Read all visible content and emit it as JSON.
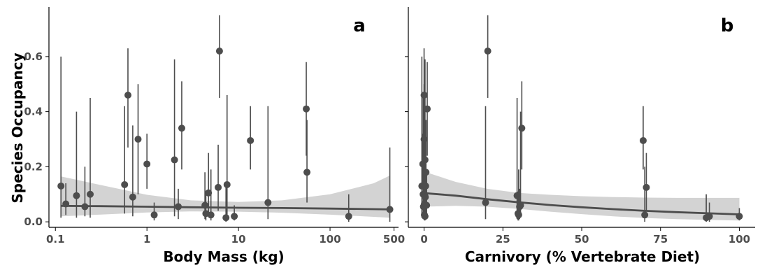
{
  "figure": {
    "ylabel": "Species Occupancy",
    "colors": {
      "points": "#4d4d4d",
      "ribbon": "#d3d3d3",
      "axis": "#000000",
      "ticktext": "#4d4d4d"
    }
  },
  "chart_data": [
    {
      "type": "scatter",
      "panel_label": "a",
      "xlabel": "Body Mass (kg)",
      "ylabel": "Species Occupancy",
      "x_scale": "log10",
      "xlim": [
        0.085,
        560
      ],
      "ylim": [
        -0.02,
        0.78
      ],
      "x_ticks": [
        0.1,
        1,
        10,
        100,
        500
      ],
      "x_tick_labels": [
        "0.1",
        "1",
        "10",
        "100",
        "500"
      ],
      "y_ticks": [
        0.0,
        0.2,
        0.4,
        0.6
      ],
      "y_tick_labels": [
        "0.0",
        "0.2",
        "0.4",
        "0.6"
      ],
      "grid": false,
      "points": [
        {
          "x": 0.115,
          "y": 0.13,
          "lo": 0.015,
          "hi": 0.6
        },
        {
          "x": 0.13,
          "y": 0.065,
          "lo": 0.025,
          "hi": 0.14
        },
        {
          "x": 0.17,
          "y": 0.095,
          "lo": 0.015,
          "hi": 0.4
        },
        {
          "x": 0.21,
          "y": 0.055,
          "lo": 0.02,
          "hi": 0.2
        },
        {
          "x": 0.24,
          "y": 0.1,
          "lo": 0.015,
          "hi": 0.45
        },
        {
          "x": 0.57,
          "y": 0.135,
          "lo": 0.03,
          "hi": 0.42
        },
        {
          "x": 0.62,
          "y": 0.46,
          "lo": 0.27,
          "hi": 0.63
        },
        {
          "x": 0.7,
          "y": 0.09,
          "lo": 0.02,
          "hi": 0.35
        },
        {
          "x": 0.8,
          "y": 0.3,
          "lo": 0.1,
          "hi": 0.5
        },
        {
          "x": 1.0,
          "y": 0.21,
          "lo": 0.12,
          "hi": 0.32
        },
        {
          "x": 1.2,
          "y": 0.025,
          "lo": 0.005,
          "hi": 0.07
        },
        {
          "x": 2.0,
          "y": 0.225,
          "lo": 0.02,
          "hi": 0.59
        },
        {
          "x": 2.2,
          "y": 0.055,
          "lo": 0.01,
          "hi": 0.12
        },
        {
          "x": 2.4,
          "y": 0.34,
          "lo": 0.19,
          "hi": 0.51
        },
        {
          "x": 4.3,
          "y": 0.06,
          "lo": 0.01,
          "hi": 0.18
        },
        {
          "x": 4.4,
          "y": 0.03,
          "lo": 0.005,
          "hi": 0.11
        },
        {
          "x": 4.7,
          "y": 0.105,
          "lo": 0.03,
          "hi": 0.25
        },
        {
          "x": 5.0,
          "y": 0.025,
          "lo": 0.005,
          "hi": 0.19
        },
        {
          "x": 6.0,
          "y": 0.125,
          "lo": 0.04,
          "hi": 0.28
        },
        {
          "x": 6.2,
          "y": 0.62,
          "lo": 0.45,
          "hi": 0.75
        },
        {
          "x": 7.3,
          "y": 0.015,
          "lo": 0.0,
          "hi": 0.13
        },
        {
          "x": 7.5,
          "y": 0.135,
          "lo": 0.01,
          "hi": 0.46
        },
        {
          "x": 9.0,
          "y": 0.02,
          "lo": 0.005,
          "hi": 0.06
        },
        {
          "x": 13.5,
          "y": 0.295,
          "lo": 0.19,
          "hi": 0.42
        },
        {
          "x": 21.0,
          "y": 0.07,
          "lo": 0.01,
          "hi": 0.42
        },
        {
          "x": 55.0,
          "y": 0.41,
          "lo": 0.24,
          "hi": 0.58
        },
        {
          "x": 56.0,
          "y": 0.18,
          "lo": 0.07,
          "hi": 0.37
        },
        {
          "x": 160.0,
          "y": 0.02,
          "lo": 0.0,
          "hi": 0.1
        },
        {
          "x": 450.0,
          "y": 0.045,
          "lo": 0.0,
          "hi": 0.27
        }
      ],
      "fit": {
        "x": [
          0.115,
          0.3,
          1,
          3,
          10,
          30,
          100,
          300,
          450
        ],
        "y": [
          0.058,
          0.057,
          0.055,
          0.053,
          0.051,
          0.05,
          0.048,
          0.046,
          0.045
        ],
        "lower": [
          0.02,
          0.026,
          0.034,
          0.038,
          0.037,
          0.033,
          0.026,
          0.018,
          0.015
        ],
        "upper": [
          0.165,
          0.135,
          0.098,
          0.078,
          0.072,
          0.078,
          0.1,
          0.14,
          0.168
        ]
      }
    },
    {
      "type": "scatter",
      "panel_label": "b",
      "xlabel": "Carnivory (% Vertebrate Diet)",
      "ylabel": "Species Occupancy",
      "x_scale": "linear",
      "xlim": [
        -5,
        105
      ],
      "ylim": [
        -0.02,
        0.78
      ],
      "x_ticks": [
        0,
        25,
        50,
        75,
        100
      ],
      "x_tick_labels": [
        "0",
        "25",
        "50",
        "75",
        "100"
      ],
      "y_ticks": [
        0.0,
        0.2,
        0.4,
        0.6
      ],
      "y_tick_labels": [
        "0.0",
        "0.2",
        "0.4",
        "0.6"
      ],
      "grid": false,
      "points": [
        {
          "x": -0.7,
          "y": 0.13,
          "lo": 0.015,
          "hi": 0.6
        },
        {
          "x": -0.4,
          "y": 0.21,
          "lo": 0.12,
          "hi": 0.32
        },
        {
          "x": -0.3,
          "y": 0.1,
          "lo": 0.015,
          "hi": 0.45
        },
        {
          "x": -0.2,
          "y": 0.055,
          "lo": 0.02,
          "hi": 0.2
        },
        {
          "x": 0.0,
          "y": 0.46,
          "lo": 0.27,
          "hi": 0.63
        },
        {
          "x": 0.0,
          "y": 0.3,
          "lo": 0.1,
          "hi": 0.5
        },
        {
          "x": 0.0,
          "y": 0.135,
          "lo": 0.03,
          "hi": 0.42
        },
        {
          "x": 0.1,
          "y": 0.065,
          "lo": 0.025,
          "hi": 0.14
        },
        {
          "x": 0.1,
          "y": 0.025,
          "lo": 0.005,
          "hi": 0.07
        },
        {
          "x": 0.2,
          "y": 0.095,
          "lo": 0.015,
          "hi": 0.4
        },
        {
          "x": 0.3,
          "y": 0.225,
          "lo": 0.02,
          "hi": 0.59
        },
        {
          "x": 0.3,
          "y": 0.02,
          "lo": 0.005,
          "hi": 0.06
        },
        {
          "x": 0.4,
          "y": 0.09,
          "lo": 0.02,
          "hi": 0.35
        },
        {
          "x": 0.5,
          "y": 0.13,
          "lo": 0.02,
          "hi": 0.35
        },
        {
          "x": 0.6,
          "y": 0.18,
          "lo": 0.07,
          "hi": 0.37
        },
        {
          "x": 0.8,
          "y": 0.06,
          "lo": 0.01,
          "hi": 0.18
        },
        {
          "x": 1.0,
          "y": 0.41,
          "lo": 0.24,
          "hi": 0.58
        },
        {
          "x": 19.5,
          "y": 0.07,
          "lo": 0.01,
          "hi": 0.42
        },
        {
          "x": 20.2,
          "y": 0.62,
          "lo": 0.45,
          "hi": 0.75
        },
        {
          "x": 29.5,
          "y": 0.095,
          "lo": 0.01,
          "hi": 0.45
        },
        {
          "x": 29.8,
          "y": 0.03,
          "lo": 0.005,
          "hi": 0.11
        },
        {
          "x": 30.0,
          "y": 0.025,
          "lo": 0.005,
          "hi": 0.19
        },
        {
          "x": 30.3,
          "y": 0.055,
          "lo": 0.01,
          "hi": 0.12
        },
        {
          "x": 30.6,
          "y": 0.06,
          "lo": 0.02,
          "hi": 0.4
        },
        {
          "x": 31.0,
          "y": 0.34,
          "lo": 0.19,
          "hi": 0.51
        },
        {
          "x": 69.5,
          "y": 0.295,
          "lo": 0.19,
          "hi": 0.42
        },
        {
          "x": 70.0,
          "y": 0.025,
          "lo": 0.0,
          "hi": 0.2
        },
        {
          "x": 70.5,
          "y": 0.125,
          "lo": 0.04,
          "hi": 0.25
        },
        {
          "x": 89.5,
          "y": 0.015,
          "lo": 0.0,
          "hi": 0.1
        },
        {
          "x": 90.5,
          "y": 0.02,
          "lo": 0.0,
          "hi": 0.07
        },
        {
          "x": 100.0,
          "y": 0.02,
          "lo": 0.005,
          "hi": 0.05
        }
      ],
      "fit": {
        "x": [
          -0.7,
          10,
          20,
          30,
          40,
          50,
          60,
          70,
          80,
          90,
          100
        ],
        "y": [
          0.105,
          0.095,
          0.082,
          0.071,
          0.061,
          0.053,
          0.046,
          0.04,
          0.035,
          0.031,
          0.027
        ],
        "lower": [
          0.055,
          0.058,
          0.055,
          0.047,
          0.037,
          0.028,
          0.02,
          0.014,
          0.01,
          0.007,
          0.005
        ],
        "upper": [
          0.185,
          0.145,
          0.12,
          0.105,
          0.098,
          0.093,
          0.09,
          0.088,
          0.087,
          0.087,
          0.087
        ]
      }
    }
  ]
}
